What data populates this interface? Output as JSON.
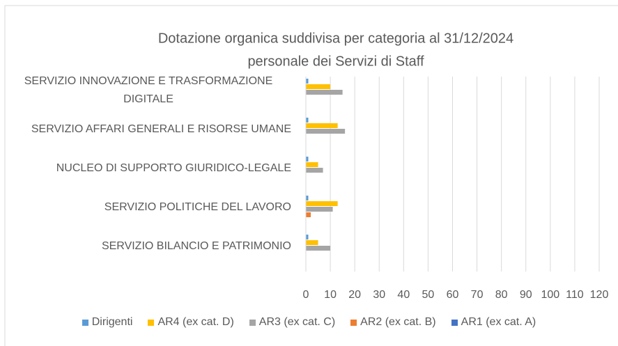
{
  "chart_data": {
    "type": "bar",
    "orientation": "horizontal",
    "title": "Dotazione organica suddivisa per categoria al 31/12/2024",
    "subtitle": "personale dei Servizi di Staff",
    "categories": [
      "SERVIZIO INNOVAZIONE E TRASFORMAZIONE DIGITALE",
      "SERVIZIO AFFARI GENERALI E RISORSE UMANE",
      "NUCLEO DI SUPPORTO GIURIDICO-LEGALE",
      "SERVIZIO POLITICHE DEL LAVORO",
      "SERVIZIO BILANCIO E PATRIMONIO"
    ],
    "series": [
      {
        "name": "Dirigenti",
        "color": "#5b9bd5",
        "values": [
          1,
          1,
          1,
          1,
          1
        ]
      },
      {
        "name": "AR4 (ex cat. D)",
        "color": "#ffc000",
        "values": [
          10,
          13,
          5,
          13,
          5
        ]
      },
      {
        "name": "AR3 (ex cat. C)",
        "color": "#a5a5a5",
        "values": [
          15,
          16,
          7,
          11,
          10
        ]
      },
      {
        "name": "AR2 (ex cat. B)",
        "color": "#ed7d31",
        "values": [
          0,
          0,
          0,
          2,
          0
        ]
      },
      {
        "name": "AR1 (ex cat. A)",
        "color": "#4472c4",
        "values": [
          0,
          0,
          0,
          0,
          0
        ]
      }
    ],
    "xlim": [
      0,
      120
    ],
    "xticks": [
      0,
      10,
      20,
      30,
      40,
      50,
      60,
      70,
      80,
      90,
      100,
      110,
      120
    ],
    "grid": true,
    "legend": "bottom"
  }
}
